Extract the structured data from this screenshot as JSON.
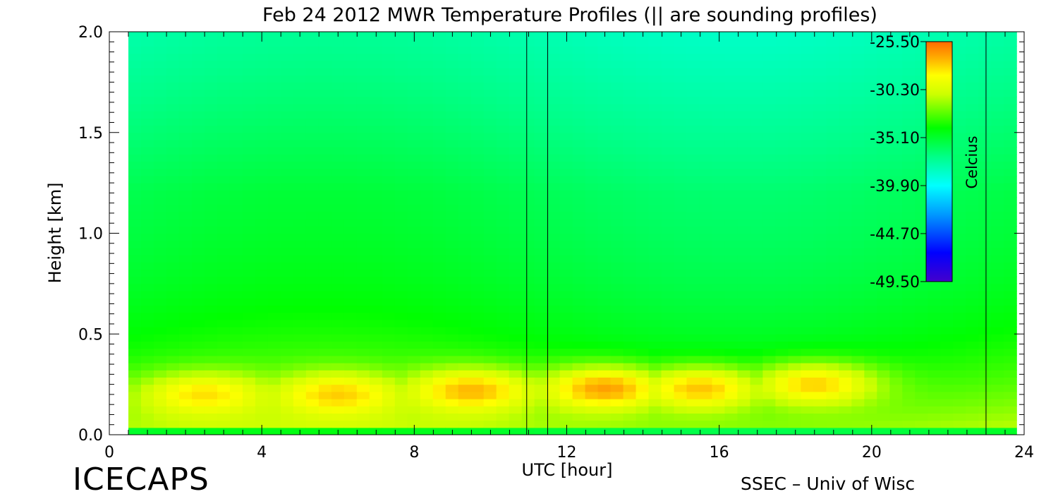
{
  "chart_data": {
    "type": "heatmap",
    "title": "Feb 24 2012 MWR Temperature Profiles (|| are sounding profiles)",
    "xlabel": "UTC [hour]",
    "ylabel": "Height [km]",
    "xlim": [
      0,
      24
    ],
    "ylim": [
      0,
      2.0
    ],
    "x_ticks": [
      "0",
      "4",
      "8",
      "12",
      "16",
      "20",
      "24"
    ],
    "y_ticks": [
      "0.0",
      "0.5",
      "1.0",
      "1.5",
      "2.0"
    ],
    "data_x_range": [
      0.5,
      23.8
    ],
    "sounding_profiles_hours": [
      10.95,
      11.5,
      23.0
    ],
    "colorbar": {
      "label": "Celcius",
      "ticks": [
        "-25.50",
        "-30.30",
        "-35.10",
        "-39.90",
        "-44.70",
        "-49.50"
      ],
      "min": -49.5,
      "max": -25.5
    },
    "warm_layer_centers": [
      {
        "hour": 2.5,
        "height_km": 0.2,
        "temp_c": -28.2
      },
      {
        "hour": 6.0,
        "height_km": 0.2,
        "temp_c": -27.8
      },
      {
        "hour": 9.5,
        "height_km": 0.22,
        "temp_c": -27.3
      },
      {
        "hour": 13.0,
        "height_km": 0.23,
        "temp_c": -26.8
      },
      {
        "hour": 15.5,
        "height_km": 0.23,
        "temp_c": -27.6
      },
      {
        "hour": 18.5,
        "height_km": 0.25,
        "temp_c": -27.9
      }
    ]
  },
  "footer": {
    "left": "ICECAPS",
    "right": "SSEC – Univ of Wisc"
  }
}
